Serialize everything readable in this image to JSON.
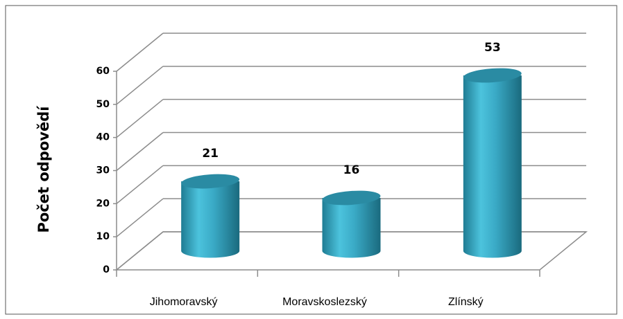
{
  "chart_data": {
    "type": "bar3d",
    "y_label": "Počet odpovědí",
    "categories": [
      "Jihomoravský",
      "Moravskoslezský",
      "Zlínský"
    ],
    "values": [
      21,
      16,
      53
    ],
    "color": "#3aaac6",
    "ylim": [
      0,
      60
    ],
    "yticks": [
      0,
      10,
      20,
      30,
      40,
      50,
      60
    ],
    "grid": true
  }
}
